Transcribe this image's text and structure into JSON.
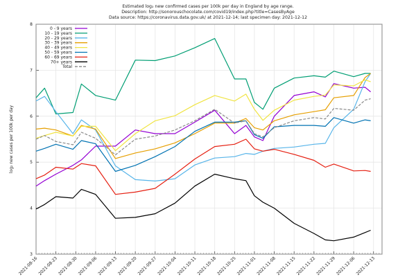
{
  "chart_data": {
    "type": "line",
    "title": [
      "Estimated log₂ new confirmed cases per 100k per day in England by age range.",
      "Description: http://sonorouschocolate.com/covid19/index.php?title=CasesByAge",
      "Data source: https://coronavirus.data.gov.uk/ at 2021-12-14; last specimen day: 2021-12-12"
    ],
    "ylabel": "log₂ new cases per 100k per day",
    "xlabel": "",
    "ylim": [
      3,
      8
    ],
    "xlim": [
      "2021-08-16",
      "2021-12-16"
    ],
    "yticks": [
      "3",
      "4",
      "5",
      "6",
      "7",
      "8"
    ],
    "xticks": [
      "2021-08-16",
      "2021-08-23",
      "2021-08-30",
      "2021-09-06",
      "2021-09-13",
      "2021-09-20",
      "2021-09-27",
      "2021-10-04",
      "2021-10-11",
      "2021-10-18",
      "2021-10-25",
      "2021-11-01",
      "2021-11-08",
      "2021-11-15",
      "2021-11-22",
      "2021-11-29",
      "2021-12-06",
      "2021-12-13"
    ],
    "grid": true,
    "legend_position": "top-left",
    "x": [
      "2021-08-16",
      "2021-08-19",
      "2021-08-23",
      "2021-08-29",
      "2021-09-01",
      "2021-09-06",
      "2021-09-13",
      "2021-09-20",
      "2021-09-27",
      "2021-10-04",
      "2021-10-11",
      "2021-10-18",
      "2021-10-25",
      "2021-10-29",
      "2021-11-01",
      "2021-11-04",
      "2021-11-08",
      "2021-11-15",
      "2021-11-22",
      "2021-11-26",
      "2021-11-29",
      "2021-12-06",
      "2021-12-10",
      "2021-12-12"
    ],
    "series": [
      {
        "name": "0 - 9 years",
        "color": "#9400d3",
        "dash": false,
        "values": [
          4.48,
          4.6,
          4.74,
          4.93,
          5.05,
          5.35,
          5.35,
          5.7,
          5.62,
          5.62,
          5.87,
          6.13,
          5.62,
          5.8,
          5.55,
          5.47,
          6.0,
          6.45,
          6.53,
          6.42,
          6.71,
          6.61,
          6.63,
          6.53
        ]
      },
      {
        "name": "10 - 19 years",
        "color": "#009e73",
        "dash": false,
        "values": [
          6.4,
          6.61,
          6.05,
          6.08,
          6.7,
          6.45,
          6.35,
          7.22,
          7.21,
          7.31,
          7.49,
          7.69,
          6.81,
          6.81,
          6.3,
          6.15,
          6.61,
          6.83,
          6.88,
          6.85,
          6.98,
          6.86,
          6.93,
          6.93
        ]
      },
      {
        "name": "20 - 29 years",
        "color": "#56b4e9",
        "dash": false,
        "values": [
          6.33,
          6.43,
          6.1,
          5.62,
          5.92,
          5.7,
          4.92,
          4.62,
          4.59,
          4.64,
          4.94,
          5.09,
          5.12,
          5.19,
          5.17,
          5.24,
          5.3,
          5.33,
          5.39,
          5.41,
          5.75,
          6.15,
          6.75,
          6.93
        ]
      },
      {
        "name": "30 - 39 years",
        "color": "#e69f00",
        "dash": false,
        "values": [
          5.72,
          5.74,
          5.7,
          5.57,
          5.8,
          5.72,
          5.08,
          5.2,
          5.29,
          5.42,
          5.62,
          5.85,
          5.85,
          5.95,
          5.75,
          5.7,
          5.9,
          6.03,
          6.1,
          6.14,
          6.4,
          6.45,
          6.84,
          6.93
        ]
      },
      {
        "name": "40 - 49 years",
        "color": "#f0e442",
        "dash": false,
        "values": [
          5.52,
          5.58,
          5.65,
          5.57,
          5.78,
          5.78,
          5.25,
          5.62,
          5.9,
          6.01,
          6.25,
          6.45,
          6.33,
          6.48,
          6.15,
          5.91,
          6.13,
          6.35,
          6.43,
          6.46,
          6.68,
          6.66,
          6.79,
          6.75
        ]
      },
      {
        "name": "50 - 59 years",
        "color": "#0072b2",
        "dash": false,
        "values": [
          5.24,
          5.3,
          5.39,
          5.28,
          5.47,
          5.4,
          4.8,
          4.93,
          5.12,
          5.34,
          5.67,
          5.87,
          5.87,
          5.9,
          5.6,
          5.52,
          5.77,
          5.8,
          5.8,
          5.78,
          5.97,
          5.85,
          5.92,
          5.9
        ]
      },
      {
        "name": "60 - 69 years",
        "color": "#e51e10",
        "dash": false,
        "values": [
          4.64,
          4.72,
          4.89,
          4.85,
          4.97,
          4.92,
          4.3,
          4.35,
          4.43,
          4.74,
          5.07,
          5.34,
          5.39,
          5.5,
          5.29,
          5.24,
          5.28,
          5.17,
          5.04,
          4.89,
          4.96,
          4.81,
          4.82,
          4.8
        ]
      },
      {
        "name": "70+ years",
        "color": "#000000",
        "dash": false,
        "values": [
          3.98,
          4.08,
          4.25,
          4.22,
          4.41,
          4.3,
          3.78,
          3.8,
          3.88,
          4.11,
          4.48,
          4.74,
          4.64,
          4.6,
          4.27,
          4.13,
          4.0,
          3.67,
          3.45,
          3.31,
          3.29,
          3.37,
          3.47,
          3.52
        ]
      },
      {
        "name": "Total",
        "color": "#888888",
        "dash": true,
        "values": [
          5.5,
          5.58,
          5.45,
          5.38,
          5.65,
          5.52,
          5.16,
          5.5,
          5.57,
          5.7,
          5.9,
          6.15,
          5.85,
          5.9,
          5.62,
          5.55,
          5.75,
          5.9,
          5.97,
          5.94,
          6.17,
          6.13,
          6.35,
          6.38
        ]
      }
    ]
  }
}
